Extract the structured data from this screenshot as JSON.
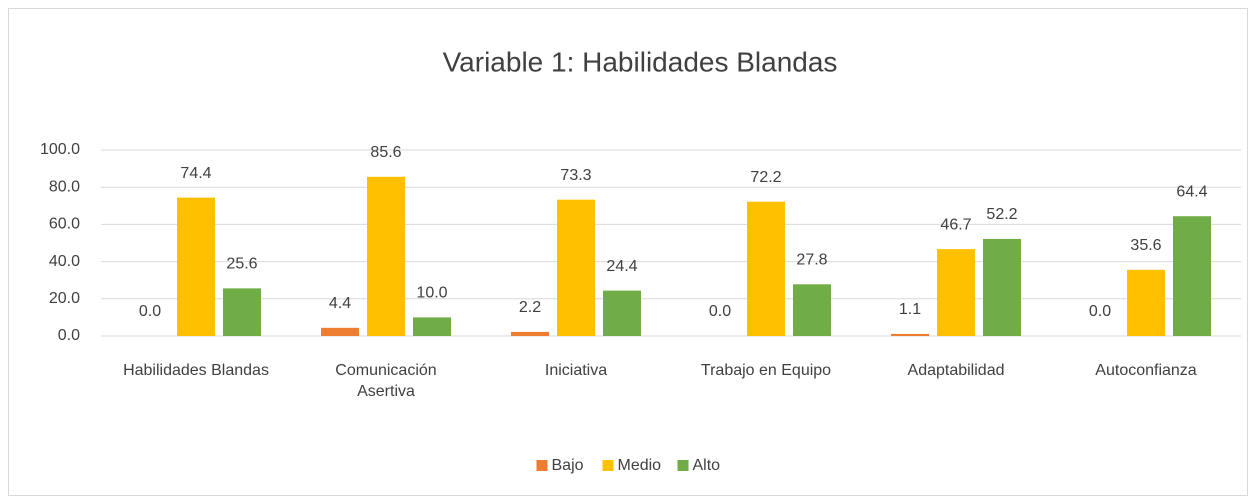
{
  "chart_data": {
    "type": "bar",
    "title": "Variable 1: Habilidades Blandas",
    "categories": [
      "Habilidades Blandas",
      "Comunicación Asertiva",
      "Iniciativa",
      "Trabajo en Equipo",
      "Adaptabilidad",
      "Autoconfianza"
    ],
    "series": [
      {
        "name": "Bajo",
        "color": "#ed7d31",
        "values": [
          0,
          4.4,
          2.2,
          0,
          1.1,
          0
        ],
        "value_labels": [
          "0.0",
          "4.4",
          "2.2",
          "0.0",
          "1.1",
          "0.0"
        ]
      },
      {
        "name": "Medio",
        "color": "#ffc000",
        "values": [
          74.4,
          85.6,
          73.3,
          72.2,
          46.7,
          35.6
        ],
        "value_labels": [
          "74.4",
          "85.6",
          "73.3",
          "72.2",
          "46.7",
          "35.6"
        ]
      },
      {
        "name": "Alto",
        "color": "#70ad47",
        "values": [
          25.6,
          10,
          24.4,
          27.8,
          52.2,
          64.4
        ],
        "value_labels": [
          "25.6",
          "10.0",
          "24.4",
          "27.8",
          "52.2",
          "64.4"
        ]
      }
    ],
    "ylim": [
      0,
      100
    ],
    "yticks": [
      {
        "value": 0,
        "label": "0.0"
      },
      {
        "value": 20,
        "label": "20.0"
      },
      {
        "value": 40,
        "label": "40.0"
      },
      {
        "value": 60,
        "label": "60.0"
      },
      {
        "value": 80,
        "label": "80.0"
      },
      {
        "value": 100,
        "label": "100.0"
      }
    ],
    "grid": true,
    "legend": "bottom"
  }
}
